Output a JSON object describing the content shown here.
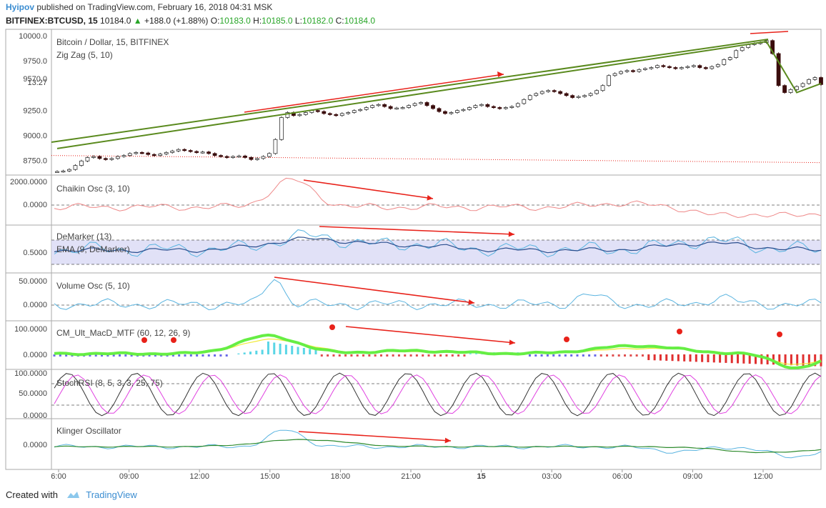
{
  "header": {
    "author": "Hyipov",
    "published": "published on TradingView.com, February 16, 2018 04:31 MSK",
    "symbol": "BITFINEX:BTCUSD, 15",
    "last": "10184.0",
    "change": "+188.0 (+1.88%)",
    "o_label": "O:",
    "o": "10183.0",
    "h_label": "H:",
    "h": "10185.0",
    "l_label": "L:",
    "l": "10182.0",
    "c_label": "C:",
    "c": "10184.0"
  },
  "footer": {
    "created": "Created with",
    "brand": "TradingView"
  },
  "colors": {
    "up": "#28a528",
    "down": "#3a0c0c",
    "trend": "#5a8a1e",
    "red": "#e8221a",
    "blue_line": "#5ab4e0",
    "navy": "#2b4f8f",
    "magenta": "#e040e0",
    "green_line": "#2e8b2e",
    "macd_green": "#66ee44",
    "macd_red": "#ee5555",
    "yellow": "#f2ea38"
  },
  "chart_data": {
    "type": "line",
    "title": "Bitcoin / Dollar, 15, BITFINEX",
    "x_ticks": [
      "6:00",
      "09:00",
      "12:00",
      "15:00",
      "18:00",
      "21:00",
      "15",
      "03:00",
      "06:00",
      "09:00",
      "12:00"
    ],
    "panels": [
      {
        "name": "price",
        "labels": [
          "Bitcoin / Dollar, 15, BITFINEX",
          "Zig Zag (5, 10)"
        ],
        "y_ticks": [
          "10000.0",
          "9750.0",
          "9570.0",
          "9250.0",
          "9000.0",
          "8750.0"
        ],
        "price_label": "13:27",
        "ylim": [
          8640,
          10020
        ],
        "closes": [
          8640,
          8645,
          8660,
          8700,
          8745,
          8780,
          8790,
          8770,
          8760,
          8770,
          8790,
          8800,
          8820,
          8830,
          8825,
          8810,
          8800,
          8815,
          8830,
          8845,
          8860,
          8850,
          8840,
          8830,
          8835,
          8820,
          8800,
          8790,
          8780,
          8790,
          8795,
          8780,
          8760,
          8770,
          8790,
          8820,
          8960,
          9180,
          9230,
          9200,
          9210,
          9230,
          9250,
          9240,
          9220,
          9210,
          9200,
          9220,
          9230,
          9250,
          9260,
          9280,
          9300,
          9310,
          9290,
          9270,
          9275,
          9280,
          9300,
          9320,
          9330,
          9300,
          9270,
          9240,
          9220,
          9230,
          9250,
          9260,
          9280,
          9300,
          9310,
          9290,
          9280,
          9270,
          9280,
          9290,
          9320,
          9360,
          9400,
          9420,
          9440,
          9450,
          9440,
          9420,
          9400,
          9380,
          9390,
          9400,
          9420,
          9450,
          9500,
          9600,
          9620,
          9640,
          9650,
          9640,
          9660,
          9670,
          9680,
          9700,
          9690,
          9680,
          9670,
          9680,
          9690,
          9700,
          9680,
          9670,
          9690,
          9710,
          9760,
          9780,
          9850,
          9880,
          9910,
          9920,
          9930,
          9950,
          9820,
          9500,
          9430,
          9460,
          9490,
          9520,
          9560,
          9580,
          9510
        ],
        "zigzag": [
          [
            0,
            8870
          ],
          [
            117,
            9940
          ],
          [
            122,
            9430
          ],
          [
            126,
            9520
          ]
        ],
        "dotted_level": 8800
      },
      {
        "name": "Chaikin Osc (3, 10)",
        "y_ticks": [
          "2000.0000",
          "0.0000"
        ]
      },
      {
        "name": "DeMarker (13)",
        "y_ticks": [
          "0.5000"
        ],
        "sub": "EMA (9, DeMarker)"
      },
      {
        "name": "Volume Osc (5, 10)",
        "y_ticks": [
          "50.0000",
          "0.0000"
        ]
      },
      {
        "name": "CM_Ult_MacD_MTF (60, 12, 26, 9)",
        "y_ticks": [
          "100.0000",
          "0.0000"
        ]
      },
      {
        "name": "StochRSI (8, 5, 3, 3, 25, 75)",
        "y_ticks": [
          "100.0000",
          "50.0000",
          "0.0000"
        ]
      },
      {
        "name": "Klinger Oscillator",
        "y_ticks": [
          "0.0000"
        ]
      }
    ]
  }
}
